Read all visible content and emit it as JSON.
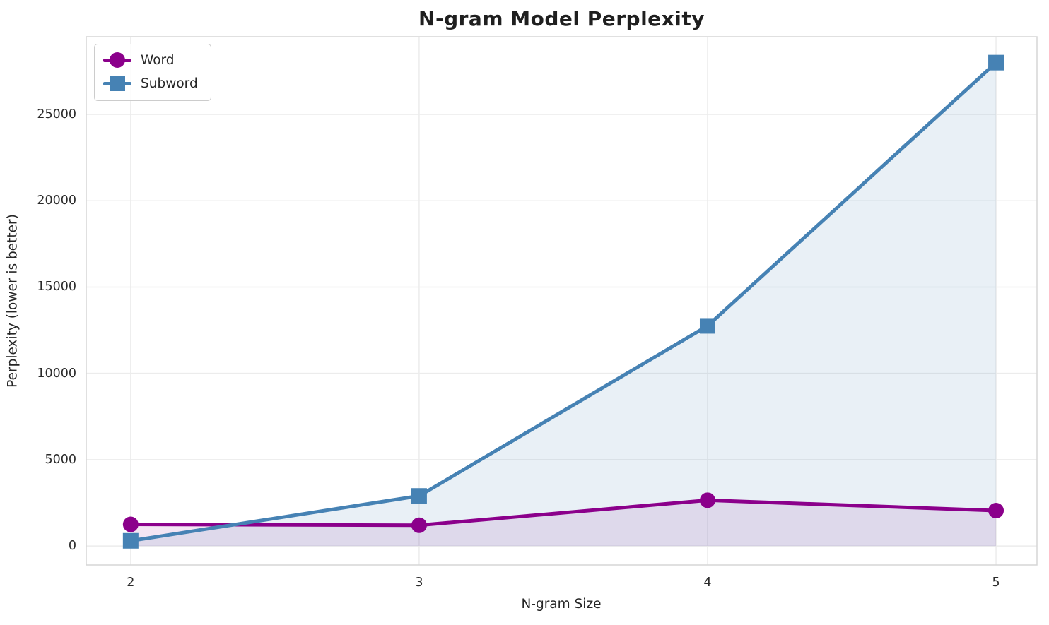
{
  "chart_data": {
    "type": "line",
    "title": "N-gram Model Perplexity",
    "xlabel": "N-gram Size",
    "ylabel": "Perplexity (lower is better)",
    "x": [
      2,
      3,
      4,
      5
    ],
    "xtick_labels": [
      "2",
      "3",
      "4",
      "5"
    ],
    "yticks": [
      0,
      5000,
      10000,
      15000,
      20000,
      25000
    ],
    "ytick_labels": [
      "0",
      "5000",
      "10000",
      "15000",
      "20000",
      "25000"
    ],
    "xlim": [
      1.846,
      5.142
    ],
    "ylim": [
      -1100,
      29500
    ],
    "grid": true,
    "legend_position": "upper left",
    "series": [
      {
        "name": "Word",
        "color": "#8B008B",
        "marker": "circle",
        "fill_alpha": 0.1,
        "values": [
          1250,
          1200,
          2650,
          2050
        ]
      },
      {
        "name": "Subword",
        "color": "#4682B4",
        "marker": "square",
        "fill_alpha": 0.12,
        "values": [
          300,
          2900,
          12750,
          28000
        ]
      }
    ],
    "style": {
      "grid_color": "#ECECEC",
      "spine_color": "#D6D6D6",
      "text_color": "#262626",
      "line_width": 5,
      "marker_size": 22
    }
  }
}
